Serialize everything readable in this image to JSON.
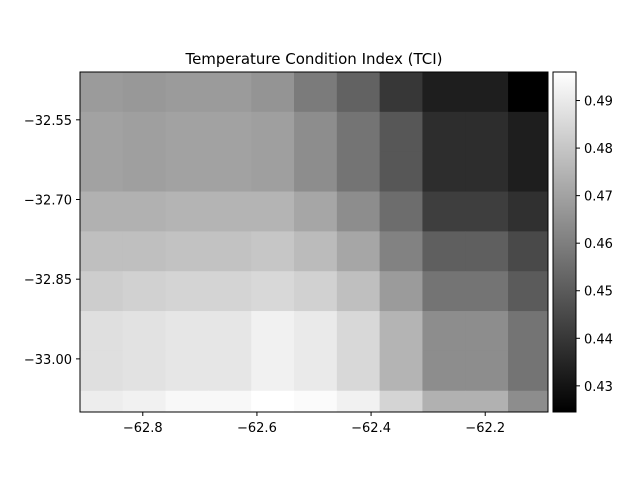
{
  "chart_data": {
    "type": "heatmap",
    "title": "Temperature Condition Index (TCI)",
    "xlabel": "",
    "ylabel": "",
    "colormap": "gray",
    "x_range": [
      -62.91,
      -62.09
    ],
    "y_range": [
      -33.1,
      -32.46
    ],
    "x_ticks": [
      {
        "value": -62.8,
        "label": "−62.8"
      },
      {
        "value": -62.6,
        "label": "−62.6"
      },
      {
        "value": -62.4,
        "label": "−62.4"
      },
      {
        "value": -62.2,
        "label": "−62.2"
      }
    ],
    "y_ticks": [
      {
        "value": -32.55,
        "label": "−32.55"
      },
      {
        "value": -32.7,
        "label": "−32.70"
      },
      {
        "value": -32.85,
        "label": "−32.85"
      },
      {
        "value": -33.0,
        "label": "−33.00"
      }
    ],
    "colorbar": {
      "vmin": 0.4245,
      "vmax": 0.496,
      "ticks": [
        {
          "value": 0.43,
          "label": "0.43"
        },
        {
          "value": 0.44,
          "label": "0.44"
        },
        {
          "value": 0.45,
          "label": "0.45"
        },
        {
          "value": 0.46,
          "label": "0.46"
        },
        {
          "value": 0.47,
          "label": "0.47"
        },
        {
          "value": 0.48,
          "label": "0.48"
        },
        {
          "value": 0.49,
          "label": "0.49"
        }
      ]
    },
    "lon_edges": [
      -62.91,
      -62.835,
      -62.76,
      -62.685,
      -62.61,
      -62.535,
      -62.46,
      -62.385,
      -62.31,
      -62.235,
      -62.16,
      -62.09
    ],
    "lat_edges": [
      -32.46,
      -32.535,
      -32.61,
      -32.685,
      -32.76,
      -32.835,
      -32.91,
      -32.985,
      -33.06,
      -33.1
    ],
    "values": [
      [
        0.468,
        0.467,
        0.468,
        0.468,
        0.466,
        0.459,
        0.452,
        0.44,
        0.433,
        0.433,
        0.4245
      ],
      [
        0.47,
        0.469,
        0.47,
        0.47,
        0.469,
        0.464,
        0.457,
        0.449,
        0.437,
        0.437,
        0.433
      ],
      [
        0.47,
        0.469,
        0.47,
        0.47,
        0.469,
        0.464,
        0.457,
        0.449,
        0.437,
        0.437,
        0.433
      ],
      [
        0.474,
        0.474,
        0.475,
        0.475,
        0.475,
        0.471,
        0.464,
        0.455,
        0.442,
        0.442,
        0.438
      ],
      [
        0.478,
        0.478,
        0.479,
        0.479,
        0.48,
        0.477,
        0.471,
        0.461,
        0.451,
        0.451,
        0.445
      ],
      [
        0.482,
        0.483,
        0.484,
        0.484,
        0.485,
        0.483,
        0.478,
        0.468,
        0.457,
        0.457,
        0.45
      ],
      [
        0.487,
        0.488,
        0.489,
        0.489,
        0.492,
        0.49,
        0.485,
        0.475,
        0.464,
        0.464,
        0.457
      ],
      [
        0.487,
        0.488,
        0.489,
        0.489,
        0.492,
        0.49,
        0.485,
        0.475,
        0.464,
        0.464,
        0.457
      ],
      [
        0.491,
        0.492,
        0.494,
        0.494,
        0.496,
        0.495,
        0.492,
        0.484,
        0.474,
        0.474,
        0.464
      ]
    ]
  }
}
